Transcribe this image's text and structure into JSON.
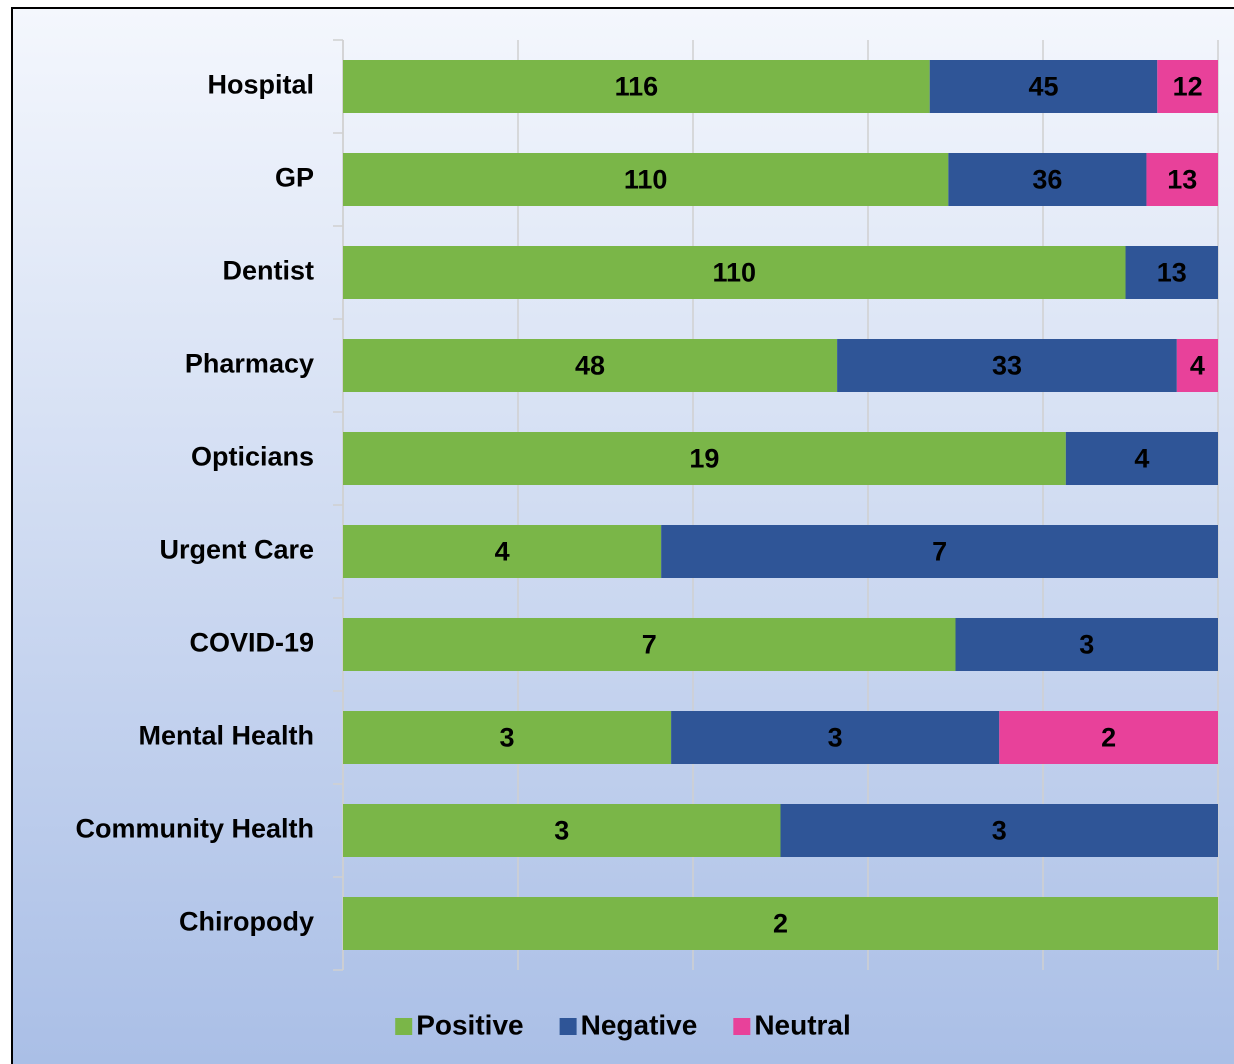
{
  "chart_data": {
    "type": "bar",
    "orientation": "horizontal",
    "stacking": "percent",
    "categories": [
      "Hospital",
      "GP",
      "Dentist",
      "Pharmacy",
      "Opticians",
      "Urgent Care",
      "COVID-19",
      "Mental Health",
      "Community Health",
      "Chiropody"
    ],
    "series": [
      {
        "name": "Positive",
        "color": "#7ab648",
        "values": [
          116,
          110,
          110,
          48,
          19,
          4,
          7,
          3,
          3,
          2
        ]
      },
      {
        "name": "Negative",
        "color": "#2f5597",
        "values": [
          45,
          36,
          13,
          33,
          4,
          7,
          3,
          3,
          3,
          null
        ]
      },
      {
        "name": "Neutral",
        "color": "#e8419a",
        "values": [
          12,
          13,
          null,
          4,
          null,
          null,
          null,
          2,
          null,
          null
        ]
      }
    ],
    "xlim": [
      0,
      100
    ],
    "xticks": [
      0,
      20,
      40,
      60,
      80,
      100
    ],
    "grid": true,
    "legend": "bottom"
  }
}
